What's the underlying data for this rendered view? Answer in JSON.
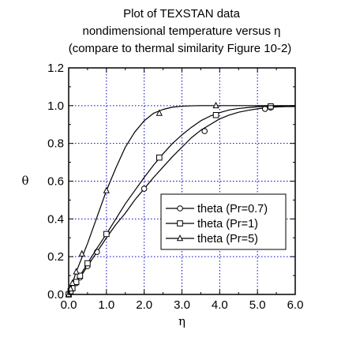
{
  "chart_data": {
    "type": "line",
    "title": [
      "Plot of TEXSTAN data",
      "nondimensional temperature versus η",
      "(compare to thermal similarity Figure 10-2)"
    ],
    "xlabel": "η",
    "ylabel": "θ",
    "xlim": [
      0.0,
      6.0
    ],
    "ylim": [
      0.0,
      1.2
    ],
    "xticks": [
      "0.0",
      "1.0",
      "2.0",
      "3.0",
      "4.0",
      "5.0",
      "6.0"
    ],
    "yticks": [
      "0.0",
      "0.2",
      "0.4",
      "0.6",
      "0.8",
      "1.0",
      "1.2"
    ],
    "grid": true,
    "legend_position": "right-middle",
    "series": [
      {
        "name": "theta (Pr=0.7)",
        "marker": "circle",
        "x": [
          0,
          0.05,
          0.1,
          0.2,
          0.3,
          0.5,
          0.75,
          1.0,
          1.25,
          1.5,
          1.75,
          2.0,
          2.25,
          2.5,
          2.75,
          3.0,
          3.25,
          3.5,
          3.75,
          4.0,
          4.25,
          4.5,
          4.75,
          5.0,
          5.25,
          5.5,
          5.75,
          6.0
        ],
        "y": [
          0,
          0.015,
          0.03,
          0.06,
          0.09,
          0.15,
          0.225,
          0.3,
          0.37,
          0.43,
          0.5,
          0.56,
          0.62,
          0.675,
          0.73,
          0.78,
          0.83,
          0.87,
          0.9,
          0.93,
          0.95,
          0.965,
          0.975,
          0.983,
          0.99,
          0.993,
          0.995,
          0.995
        ],
        "marker_x": [
          0,
          0.05,
          0.1,
          0.2,
          0.3,
          0.5,
          0.75,
          2.0,
          3.6,
          5.2,
          5.35
        ],
        "marker_y": [
          0,
          0.015,
          0.03,
          0.06,
          0.09,
          0.15,
          0.225,
          0.56,
          0.865,
          0.983,
          0.99
        ]
      },
      {
        "name": "theta (Pr=1)",
        "marker": "square",
        "x": [
          0,
          0.05,
          0.1,
          0.2,
          0.3,
          0.5,
          0.75,
          1.0,
          1.25,
          1.5,
          1.75,
          2.0,
          2.25,
          2.5,
          2.75,
          3.0,
          3.25,
          3.5,
          3.75,
          4.0,
          4.25,
          4.5,
          4.75,
          5.0,
          5.25,
          5.5,
          5.75,
          6.0
        ],
        "y": [
          0,
          0.017,
          0.033,
          0.066,
          0.099,
          0.165,
          0.245,
          0.32,
          0.4,
          0.48,
          0.55,
          0.62,
          0.685,
          0.745,
          0.8,
          0.845,
          0.885,
          0.92,
          0.945,
          0.963,
          0.977,
          0.985,
          0.99,
          0.994,
          0.996,
          0.997,
          0.997,
          0.997
        ],
        "marker_x": [
          0,
          0.05,
          0.1,
          0.2,
          0.3,
          0.5,
          1.0,
          2.4,
          3.9,
          5.35
        ],
        "marker_y": [
          0,
          0.017,
          0.033,
          0.066,
          0.099,
          0.165,
          0.32,
          0.725,
          0.95,
          0.996
        ]
      },
      {
        "name": "theta (Pr=5)",
        "marker": "triangle",
        "x": [
          0,
          0.05,
          0.1,
          0.2,
          0.3,
          0.4,
          0.5,
          0.75,
          1.0,
          1.25,
          1.5,
          1.75,
          2.0,
          2.25,
          2.5,
          2.75,
          3.0,
          3.25,
          3.5,
          3.75,
          4.0,
          4.5,
          5.0,
          5.5,
          6.0
        ],
        "y": [
          0,
          0.03,
          0.06,
          0.12,
          0.17,
          0.22,
          0.27,
          0.41,
          0.55,
          0.67,
          0.78,
          0.86,
          0.92,
          0.96,
          0.98,
          0.992,
          0.997,
          0.999,
          1.0,
          1.0,
          1.0,
          1.0,
          1.0,
          1.0,
          1.0
        ],
        "marker_x": [
          0,
          0.05,
          0.1,
          0.2,
          0.35,
          1.0,
          2.4,
          3.9
        ],
        "marker_y": [
          0,
          0.03,
          0.06,
          0.12,
          0.215,
          0.55,
          0.96,
          1.0
        ]
      }
    ],
    "colors": {
      "line": "#000000",
      "grid": "#0000cc",
      "background": "#ffffff"
    }
  }
}
